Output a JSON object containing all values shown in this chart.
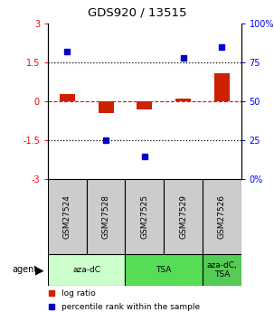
{
  "title": "GDS920 / 13515",
  "samples": [
    "GSM27524",
    "GSM27528",
    "GSM27525",
    "GSM27529",
    "GSM27526"
  ],
  "log_ratios": [
    0.3,
    -0.45,
    -0.3,
    0.1,
    1.1
  ],
  "percentile_ranks": [
    82,
    25,
    15,
    78,
    85
  ],
  "agent_groups": [
    {
      "label": "aza-dC",
      "start": 0,
      "end": 2,
      "color": "#ccffcc"
    },
    {
      "label": "TSA",
      "start": 2,
      "end": 4,
      "color": "#55dd55"
    },
    {
      "label": "aza-dC,\nTSA",
      "start": 4,
      "end": 5,
      "color": "#55cc55"
    }
  ],
  "bar_color": "#cc2200",
  "dot_color": "#0000cc",
  "ylim_left": [
    -3,
    3
  ],
  "ylim_right": [
    0,
    100
  ],
  "yticks_left": [
    -3,
    -1.5,
    0,
    1.5,
    3
  ],
  "yticks_right": [
    0,
    25,
    50,
    75,
    100
  ],
  "ytick_labels_left": [
    "-3",
    "-1.5",
    "0",
    "1.5",
    "3"
  ],
  "ytick_labels_right": [
    "0%",
    "25",
    "50",
    "75",
    "100%"
  ],
  "sample_box_color": "#cccccc",
  "legend_items": [
    {
      "color": "#cc2200",
      "label": "log ratio"
    },
    {
      "color": "#0000cc",
      "label": "percentile rank within the sample"
    }
  ]
}
